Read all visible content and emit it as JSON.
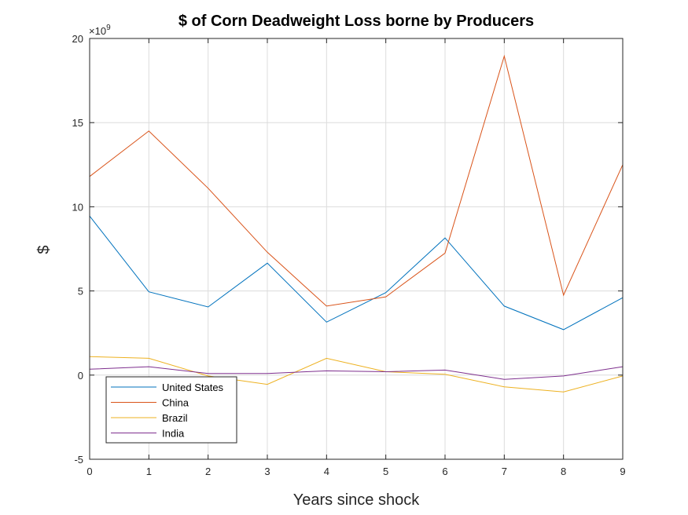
{
  "chart_data": {
    "type": "line",
    "title": "$  of Corn Deadweight Loss borne by Producers",
    "xlabel": "Years since shock",
    "ylabel": "$",
    "y_exponent_label": "×10",
    "y_exponent_power": "9",
    "xlim": [
      0,
      9
    ],
    "ylim": [
      -5,
      20
    ],
    "x_ticks": [
      0,
      1,
      2,
      3,
      4,
      5,
      6,
      7,
      8,
      9
    ],
    "y_ticks": [
      -5,
      0,
      5,
      10,
      15,
      20
    ],
    "grid": true,
    "legend_position": "bottom-left",
    "x": [
      0,
      1,
      2,
      3,
      4,
      5,
      6,
      7,
      8,
      9
    ],
    "series": [
      {
        "name": "United States",
        "color": "#0072BD",
        "values": [
          9.45,
          4.95,
          4.05,
          6.65,
          3.15,
          4.9,
          8.15,
          4.1,
          2.7,
          4.6
        ]
      },
      {
        "name": "China",
        "color": "#D95319",
        "values": [
          11.8,
          14.5,
          11.1,
          7.3,
          4.1,
          4.65,
          7.25,
          18.95,
          4.75,
          12.5
        ]
      },
      {
        "name": "Brazil",
        "color": "#EDB120",
        "values": [
          1.1,
          1.0,
          -0.05,
          -0.55,
          1.0,
          0.2,
          0.05,
          -0.7,
          -1.0,
          -0.05
        ]
      },
      {
        "name": "India",
        "color": "#7E2F8E",
        "values": [
          0.35,
          0.5,
          0.1,
          0.1,
          0.25,
          0.2,
          0.3,
          -0.25,
          -0.05,
          0.5
        ]
      }
    ]
  }
}
